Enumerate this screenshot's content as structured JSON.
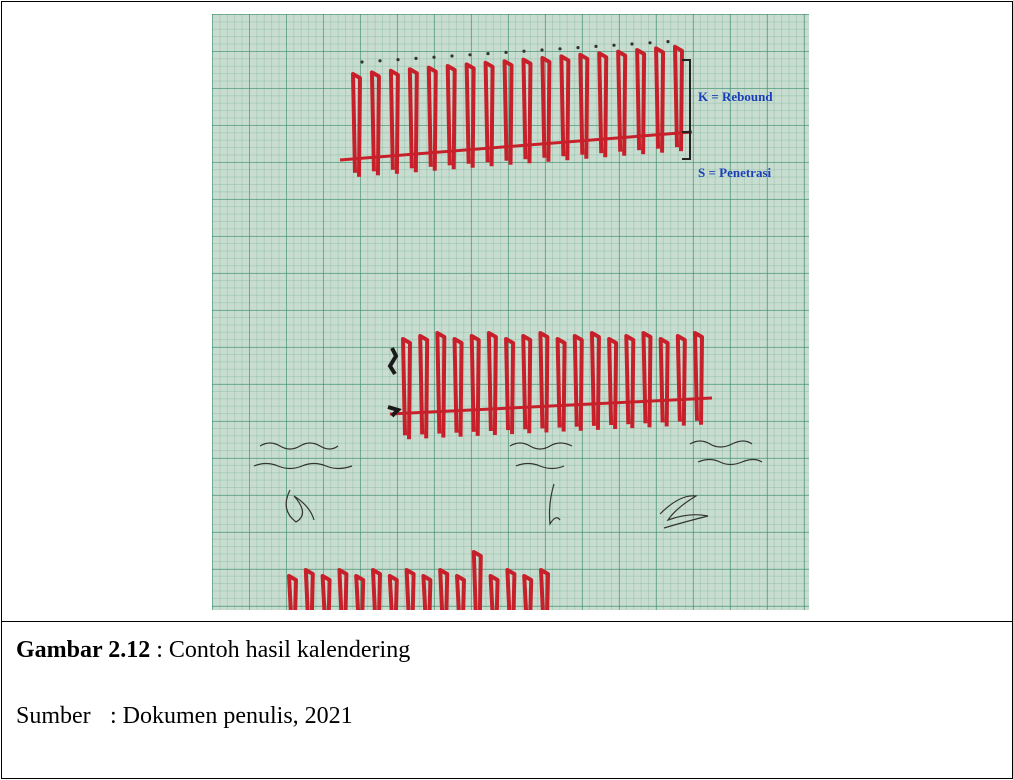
{
  "figure": {
    "legend": {
      "rebound": "K = Rebound",
      "penetration": "S = Penetrasi"
    },
    "colors": {
      "trace": "#c8202a",
      "legend": "#1a3fb8",
      "paper": "#c8ddd0"
    }
  },
  "caption": {
    "label": "Gambar 2.12",
    "separator": " : ",
    "text": "Contoh hasil kalendering"
  },
  "source": {
    "label": "Sumber",
    "separator": ": ",
    "text": "Dokumen penulis, 2021"
  }
}
